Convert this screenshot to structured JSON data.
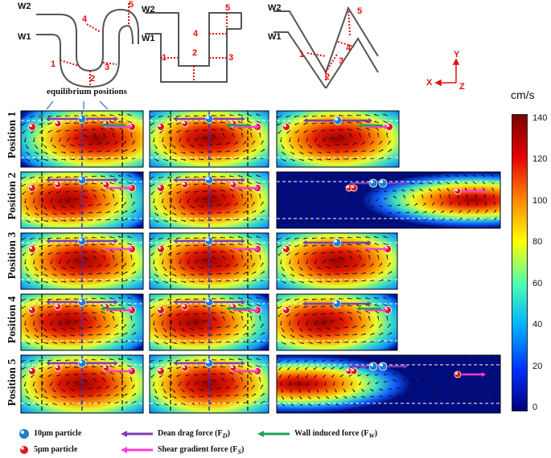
{
  "schematics": [
    {
      "id": "curved",
      "labels": {
        "w2": "W2",
        "w1": "W1",
        "p1": "1",
        "p2": "2",
        "p3": "3",
        "p4": "4",
        "p5": "5"
      }
    },
    {
      "id": "square",
      "labels": {
        "w2": "W2",
        "w1": "W1",
        "p1": "1",
        "p2": "2",
        "p3": "3",
        "p4": "4",
        "p5": "5"
      }
    },
    {
      "id": "zigzag",
      "labels": {
        "w2": "W2",
        "w1": "W1",
        "p1": "1",
        "p2": "2",
        "p3": "3",
        "p4": "4",
        "p5": "5"
      }
    }
  ],
  "axes_indicator": {
    "x": "X",
    "y": "Y",
    "z": "Z"
  },
  "equilibrium_label": "equilibrium positions",
  "row_labels": [
    "Position 1",
    "Position 2",
    "Position 3",
    "Position 4",
    "Position 5"
  ],
  "colorbar": {
    "unit": "cm/s",
    "ticks": [
      "140",
      "120",
      "100",
      "80",
      "60",
      "40",
      "20",
      "0"
    ],
    "min": 0,
    "max": 140,
    "colors": [
      "#7a0000",
      "#e30000",
      "#ff8a00",
      "#ffff00",
      "#4dffb0",
      "#00b4ff",
      "#0030ff",
      "#00007a"
    ]
  },
  "legend": {
    "particle_10": "10μm particle",
    "particle_5": "5μm particle",
    "dean": "Dean drag force (F",
    "dean_sub": "D",
    "shear": "Shear gradient force (F",
    "shear_sub": "S",
    "wall": "Wall induced force (F",
    "wall_sub": "W",
    "close": ")"
  },
  "colors": {
    "dean_arrow": "#7b3fb0",
    "shear_arrow": "#ff3ccf",
    "wall_arrow": "#1fa15a",
    "label_red": "#e01010",
    "particle_blue": "#1f7fd0",
    "particle_red": "#e01818"
  }
}
